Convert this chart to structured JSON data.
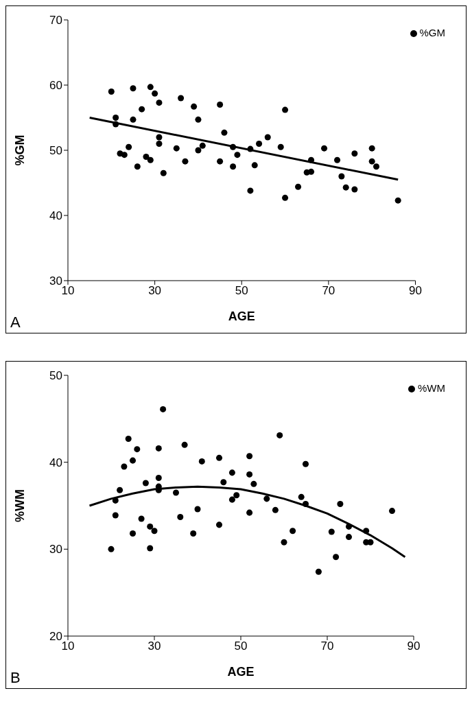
{
  "chart_data": [
    {
      "type": "scatter",
      "xlabel": "AGE",
      "ylabel": "%GM",
      "xlim": [
        10,
        90
      ],
      "xticks": [
        10,
        30,
        50,
        70,
        90
      ],
      "ylim": [
        30,
        70
      ],
      "yticks": [
        30,
        40,
        50,
        60,
        70
      ],
      "legend": "top right",
      "annotations": [
        "A"
      ],
      "series": [
        {
          "name": "%GM",
          "color": "#000000",
          "marker": "circle",
          "x": [
            20,
            21,
            21,
            22,
            23,
            24,
            25,
            25,
            26,
            27,
            28,
            29,
            29,
            30,
            31,
            31,
            31,
            32,
            35,
            36,
            37,
            39,
            40,
            40,
            41,
            45,
            45,
            46,
            48,
            48,
            49,
            52,
            52,
            53,
            54,
            56,
            59,
            60,
            60,
            63,
            65,
            66,
            66,
            69,
            72,
            73,
            74,
            76,
            76,
            80,
            80,
            81,
            86
          ],
          "values": [
            59,
            55,
            54,
            49.5,
            49.3,
            50.5,
            59.5,
            54.7,
            47.5,
            56.3,
            49,
            59.7,
            48.5,
            58.7,
            57.3,
            52,
            51,
            46.5,
            50.3,
            58,
            48.3,
            56.7,
            54.7,
            50,
            50.7,
            57,
            48.3,
            52.7,
            50.5,
            47.5,
            49.3,
            43.8,
            50.2,
            47.7,
            51,
            52,
            50.5,
            56.2,
            42.7,
            44.4,
            46.6,
            48.5,
            46.7,
            50.3,
            48.5,
            46,
            44.3,
            49.5,
            44,
            50.3,
            48.3,
            47.5,
            42.3
          ]
        },
        {
          "type": "line",
          "color": "#000000",
          "marker": "none",
          "x": [
            15,
            86
          ],
          "values": [
            55,
            45.5
          ]
        }
      ]
    },
    {
      "type": "scatter",
      "xlabel": "AGE",
      "ylabel": "%WM",
      "xlim": [
        10,
        90
      ],
      "xticks": [
        10,
        30,
        50,
        70,
        90
      ],
      "ylim": [
        20,
        50
      ],
      "yticks": [
        20,
        30,
        40,
        50
      ],
      "legend": "top right",
      "annotations": [
        "B"
      ],
      "series": [
        {
          "name": "%WM",
          "color": "#000000",
          "marker": "circle",
          "x": [
            20,
            21,
            22,
            21,
            24,
            23,
            25,
            26,
            25,
            27,
            28,
            29,
            30,
            29,
            31,
            31,
            31,
            31,
            32,
            35,
            36,
            37,
            39,
            40,
            41,
            45,
            45,
            46,
            48,
            48,
            49,
            52,
            52,
            53,
            52,
            56,
            58,
            59,
            60,
            62,
            65,
            64,
            65,
            68,
            71,
            72,
            73,
            75,
            75,
            79,
            79,
            80,
            85
          ],
          "values": [
            30,
            35.6,
            36.8,
            33.9,
            42.7,
            39.5,
            40.2,
            41.5,
            31.8,
            33.5,
            37.6,
            32.6,
            32.1,
            30.1,
            41.6,
            38.2,
            37.2,
            36.8,
            46.1,
            36.5,
            33.7,
            42,
            31.8,
            34.6,
            40.1,
            40.5,
            32.8,
            37.7,
            38.8,
            35.7,
            36.2,
            40.7,
            38.6,
            37.5,
            34.2,
            35.8,
            34.5,
            43.1,
            30.8,
            32.1,
            39.8,
            36,
            35.2,
            27.4,
            32,
            29.1,
            35.2,
            32.6,
            31.4,
            32.1,
            30.8,
            30.8,
            34.4
          ]
        },
        {
          "type": "line",
          "color": "#000000",
          "marker": "none",
          "x": [
            15,
            20,
            25,
            30,
            35,
            40,
            45,
            50,
            55,
            60,
            65,
            70,
            75,
            80,
            85,
            88
          ],
          "values": [
            35,
            35.8,
            36.4,
            36.9,
            37.1,
            37.2,
            37.1,
            36.9,
            36.4,
            35.8,
            35,
            34.1,
            32.9,
            31.6,
            30.1,
            29.1
          ]
        }
      ]
    }
  ]
}
